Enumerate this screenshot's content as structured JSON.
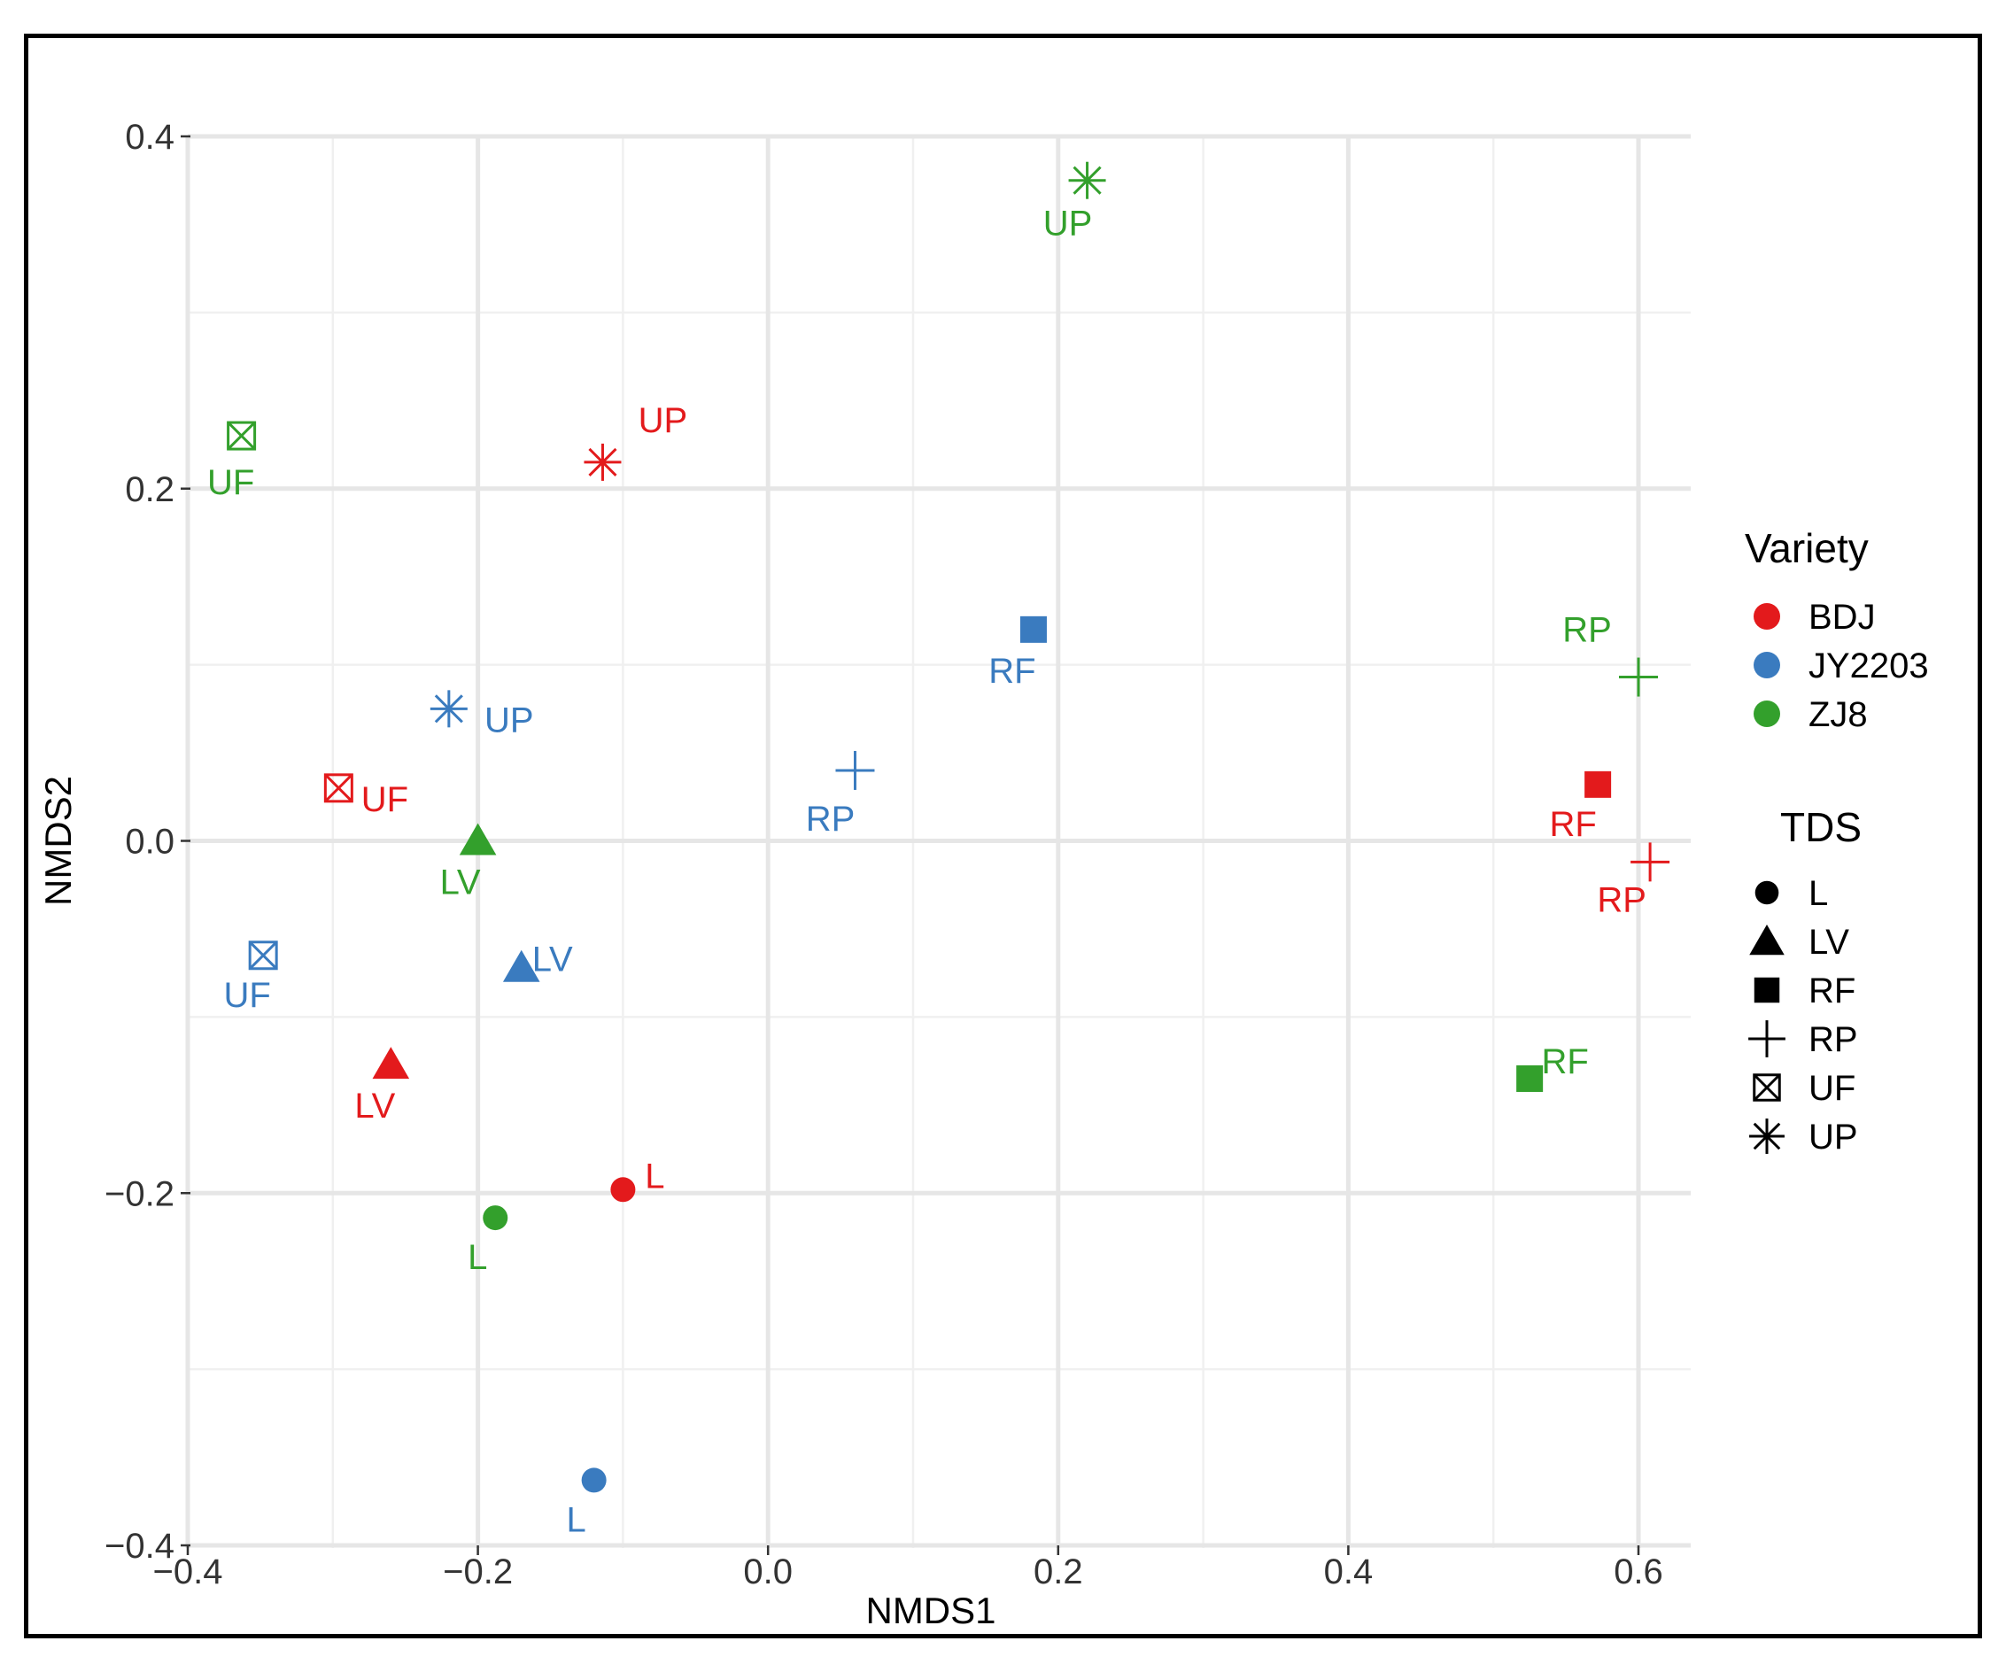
{
  "chart_data": {
    "type": "scatter",
    "xlabel": "NMDS1",
    "ylabel": "NMDS2",
    "xlim": [
      -0.4,
      0.6
    ],
    "ylim": [
      -0.4,
      0.4
    ],
    "x_ticks": [
      "−0.4",
      "−0.2",
      "0.0",
      "0.2",
      "0.4",
      "0.6"
    ],
    "y_ticks": [
      "0.4",
      "0.2",
      "0.0",
      "−0.2",
      "−0.4"
    ],
    "grid": true,
    "legend_placement": "right",
    "colors": {
      "BDJ": "#e31a1c",
      "JY2203": "#3a7bbf",
      "ZJ8": "#33a02c"
    },
    "legend": {
      "variety_title": "Variety",
      "variety": [
        "BDJ",
        "JY2203",
        "ZJ8"
      ],
      "tds_title": "TDS",
      "tds": [
        "L",
        "LV",
        "RF",
        "RP",
        "UF",
        "UP"
      ]
    },
    "points": [
      {
        "x": 0.22,
        "y": 0.375,
        "variety": "ZJ8",
        "tds": "UP",
        "label": "UP"
      },
      {
        "x": -0.363,
        "y": 0.23,
        "variety": "ZJ8",
        "tds": "UF",
        "label": "UF"
      },
      {
        "x": -0.114,
        "y": 0.215,
        "variety": "BDJ",
        "tds": "UP",
        "label": "UP"
      },
      {
        "x": 0.183,
        "y": 0.12,
        "variety": "JY2203",
        "tds": "RF",
        "label": "RF"
      },
      {
        "x": 0.6,
        "y": 0.093,
        "variety": "ZJ8",
        "tds": "RP",
        "label": "RP"
      },
      {
        "x": -0.22,
        "y": 0.075,
        "variety": "JY2203",
        "tds": "UP",
        "label": "UP"
      },
      {
        "x": 0.06,
        "y": 0.04,
        "variety": "JY2203",
        "tds": "RP",
        "label": "RP"
      },
      {
        "x": 0.572,
        "y": 0.032,
        "variety": "BDJ",
        "tds": "RF",
        "label": "RF"
      },
      {
        "x": -0.296,
        "y": 0.03,
        "variety": "BDJ",
        "tds": "UF",
        "label": "UF"
      },
      {
        "x": -0.2,
        "y": 0.0,
        "variety": "ZJ8",
        "tds": "LV",
        "label": "LV"
      },
      {
        "x": 0.608,
        "y": -0.012,
        "variety": "BDJ",
        "tds": "RP",
        "label": "RP"
      },
      {
        "x": -0.348,
        "y": -0.065,
        "variety": "JY2203",
        "tds": "UF",
        "label": "UF"
      },
      {
        "x": -0.17,
        "y": -0.072,
        "variety": "JY2203",
        "tds": "LV",
        "label": "LV"
      },
      {
        "x": -0.26,
        "y": -0.127,
        "variety": "BDJ",
        "tds": "LV",
        "label": "LV"
      },
      {
        "x": 0.525,
        "y": -0.135,
        "variety": "ZJ8",
        "tds": "RF",
        "label": "RF"
      },
      {
        "x": -0.1,
        "y": -0.198,
        "variety": "BDJ",
        "tds": "L",
        "label": "L"
      },
      {
        "x": -0.188,
        "y": -0.214,
        "variety": "ZJ8",
        "tds": "L",
        "label": "L"
      },
      {
        "x": -0.12,
        "y": -0.363,
        "variety": "JY2203",
        "tds": "L",
        "label": "L"
      }
    ]
  }
}
